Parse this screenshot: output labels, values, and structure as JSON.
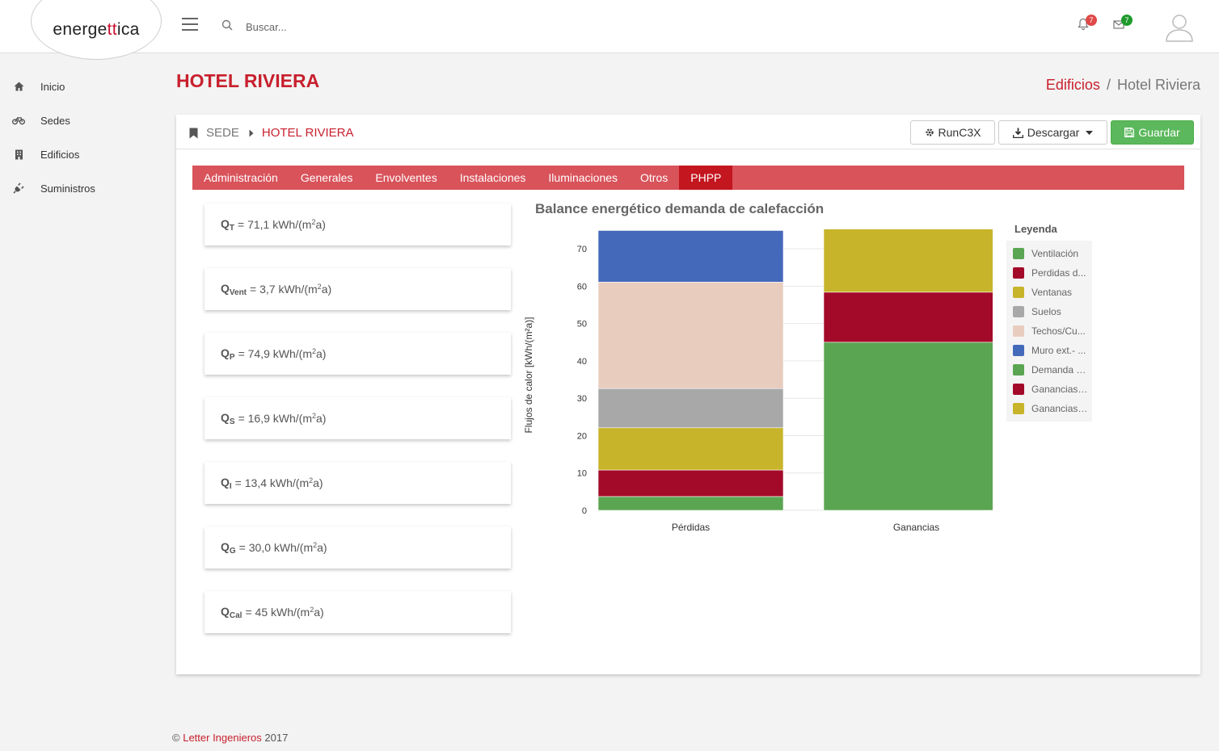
{
  "app": {
    "logo_pre": "energe",
    "logo_accent": "tt",
    "logo_post": "ica",
    "brand_color": "#c8102e"
  },
  "topbar": {
    "search_placeholder": "Buscar...",
    "notifications_count": "7",
    "messages_count": "7"
  },
  "sidebar": {
    "items": [
      {
        "label": "Inicio",
        "icon": "home-icon"
      },
      {
        "label": "Sedes",
        "icon": "bicycle-icon"
      },
      {
        "label": "Edificios",
        "icon": "building-icon"
      },
      {
        "label": "Suministros",
        "icon": "plug-icon"
      }
    ]
  },
  "page": {
    "title": "HOTEL RIVIERA",
    "breadcrumb_link": "Edificios",
    "breadcrumb_sep": "/",
    "breadcrumb_current": "Hotel Riviera"
  },
  "card": {
    "crumb_sede": "SEDE",
    "crumb_hotel": "HOTEL RIVIERA",
    "buttons": {
      "run": "RunC3X",
      "download": "Descargar",
      "save": "Guardar"
    }
  },
  "tabs": [
    "Administración",
    "Generales",
    "Envolventes",
    "Instalaciones",
    "Iluminaciones",
    "Otros",
    "PHPP"
  ],
  "active_tab": "PHPP",
  "metrics": [
    {
      "sym": "Q",
      "sub": "T",
      "value": "71,1",
      "unit": "kWh/(m",
      "sup": "2",
      "unit_end": "a)"
    },
    {
      "sym": "Q",
      "sub": "Vent",
      "value": "3,7",
      "unit": "kWh/(m",
      "sup": "2",
      "unit_end": "a)"
    },
    {
      "sym": "Q",
      "sub": "P",
      "value": "74,9",
      "unit": "kWh/(m",
      "sup": "2",
      "unit_end": "a)"
    },
    {
      "sym": "Q",
      "sub": "S",
      "value": "16,9",
      "unit": "kWh/(m",
      "sup": "2",
      "unit_end": "a)"
    },
    {
      "sym": "Q",
      "sub": "I",
      "value": "13,4",
      "unit": "kWh/(m",
      "sup": "2",
      "unit_end": "a)"
    },
    {
      "sym": "Q",
      "sub": "G",
      "value": "30,0",
      "unit": "kWh/(m",
      "sup": "2",
      "unit_end": "a)"
    },
    {
      "sym": "Q",
      "sub": "Cal",
      "value": "45",
      "unit": "kWh/(m",
      "sup": "2",
      "unit_end": "a)"
    }
  ],
  "chart_data": {
    "type": "bar",
    "stacked": true,
    "title": "Balance energético demanda de calefacción",
    "ylabel": "Flujos de calor [kWh/(m²a)]",
    "xlabel": "",
    "categories": [
      "Pérdidas",
      "Ganancias"
    ],
    "ylim": [
      0,
      75
    ],
    "yticks": [
      0,
      10,
      20,
      30,
      40,
      50,
      60,
      70
    ],
    "legend_title": "Leyenda",
    "legend_position": "right",
    "series": [
      {
        "name": "Ventilación",
        "color": "#5aa552",
        "values": [
          3.7,
          0
        ]
      },
      {
        "name": "Perdidas d...",
        "color": "#a30a2a",
        "values": [
          7.1,
          0
        ]
      },
      {
        "name": "Ventanas",
        "color": "#c8b42a",
        "values": [
          11.3,
          0
        ]
      },
      {
        "name": "Suelos",
        "color": "#a8a8a8",
        "values": [
          10.5,
          0
        ]
      },
      {
        "name": "Techos/Cu...",
        "color": "#e8ccbe",
        "values": [
          28.5,
          0
        ]
      },
      {
        "name": "Muro ext.- ...",
        "color": "#4469bb",
        "values": [
          13.8,
          0
        ]
      },
      {
        "name": "Demanda c...",
        "color": "#5aa552",
        "values": [
          0,
          45
        ]
      },
      {
        "name": "Ganancias ...",
        "color": "#a30a2a",
        "values": [
          0,
          13.4
        ]
      },
      {
        "name": "Ganancias ...",
        "color": "#c8b42a",
        "values": [
          0,
          16.9
        ]
      }
    ]
  },
  "footer": {
    "copy": "©",
    "company": "Letter Ingenieros",
    "year": "2017"
  },
  "colors": {
    "accent": "#c8202e",
    "tab_bar": "#d9535b",
    "tab_active": "#c3161f",
    "save_button": "#5cb85c",
    "badge_red": "#e04848",
    "badge_green": "#1f9a2c"
  }
}
